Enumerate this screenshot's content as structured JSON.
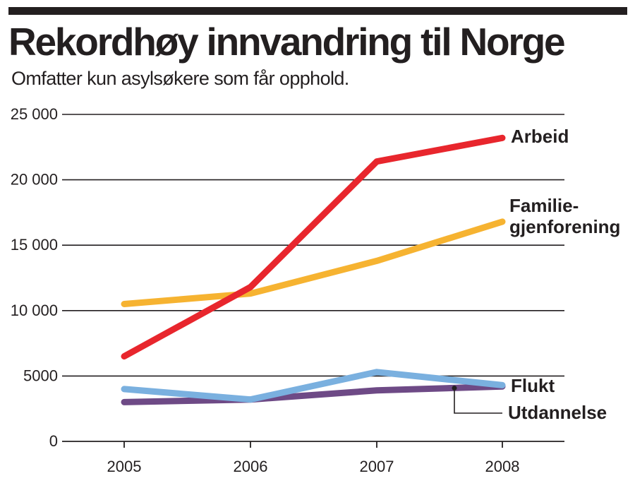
{
  "header": {
    "title": "Rekordhøy innvandring til Norge",
    "subtitle": "Omfatter kun asylsøkere som får opphold."
  },
  "colors": {
    "arbeid": "#e8262d",
    "familie": "#f6b331",
    "flukt": "#7ab0df",
    "utdannelse": "#6e4a86",
    "grid": "#231f20"
  },
  "chart_data": {
    "type": "line",
    "title": "Rekordhøy innvandring til Norge",
    "subtitle": "Omfatter kun asylsøkere som får opphold.",
    "x": [
      "2005",
      "2006",
      "2007",
      "2008"
    ],
    "ylim": [
      0,
      25000
    ],
    "yticks": [
      "0",
      "5000",
      "10 000",
      "15 000",
      "20 000",
      "25 000"
    ],
    "grid": true,
    "series": [
      {
        "name": "Arbeid",
        "values": [
          6500,
          11800,
          21400,
          23200
        ]
      },
      {
        "name": "Familie-gjenforening",
        "label_lines": [
          "Familie-",
          "gjenforening"
        ],
        "values": [
          10500,
          11300,
          13800,
          16800
        ]
      },
      {
        "name": "Flukt",
        "values": [
          4000,
          3200,
          5300,
          4300
        ]
      },
      {
        "name": "Utdannelse",
        "values": [
          3000,
          3200,
          3900,
          4200
        ]
      }
    ]
  }
}
